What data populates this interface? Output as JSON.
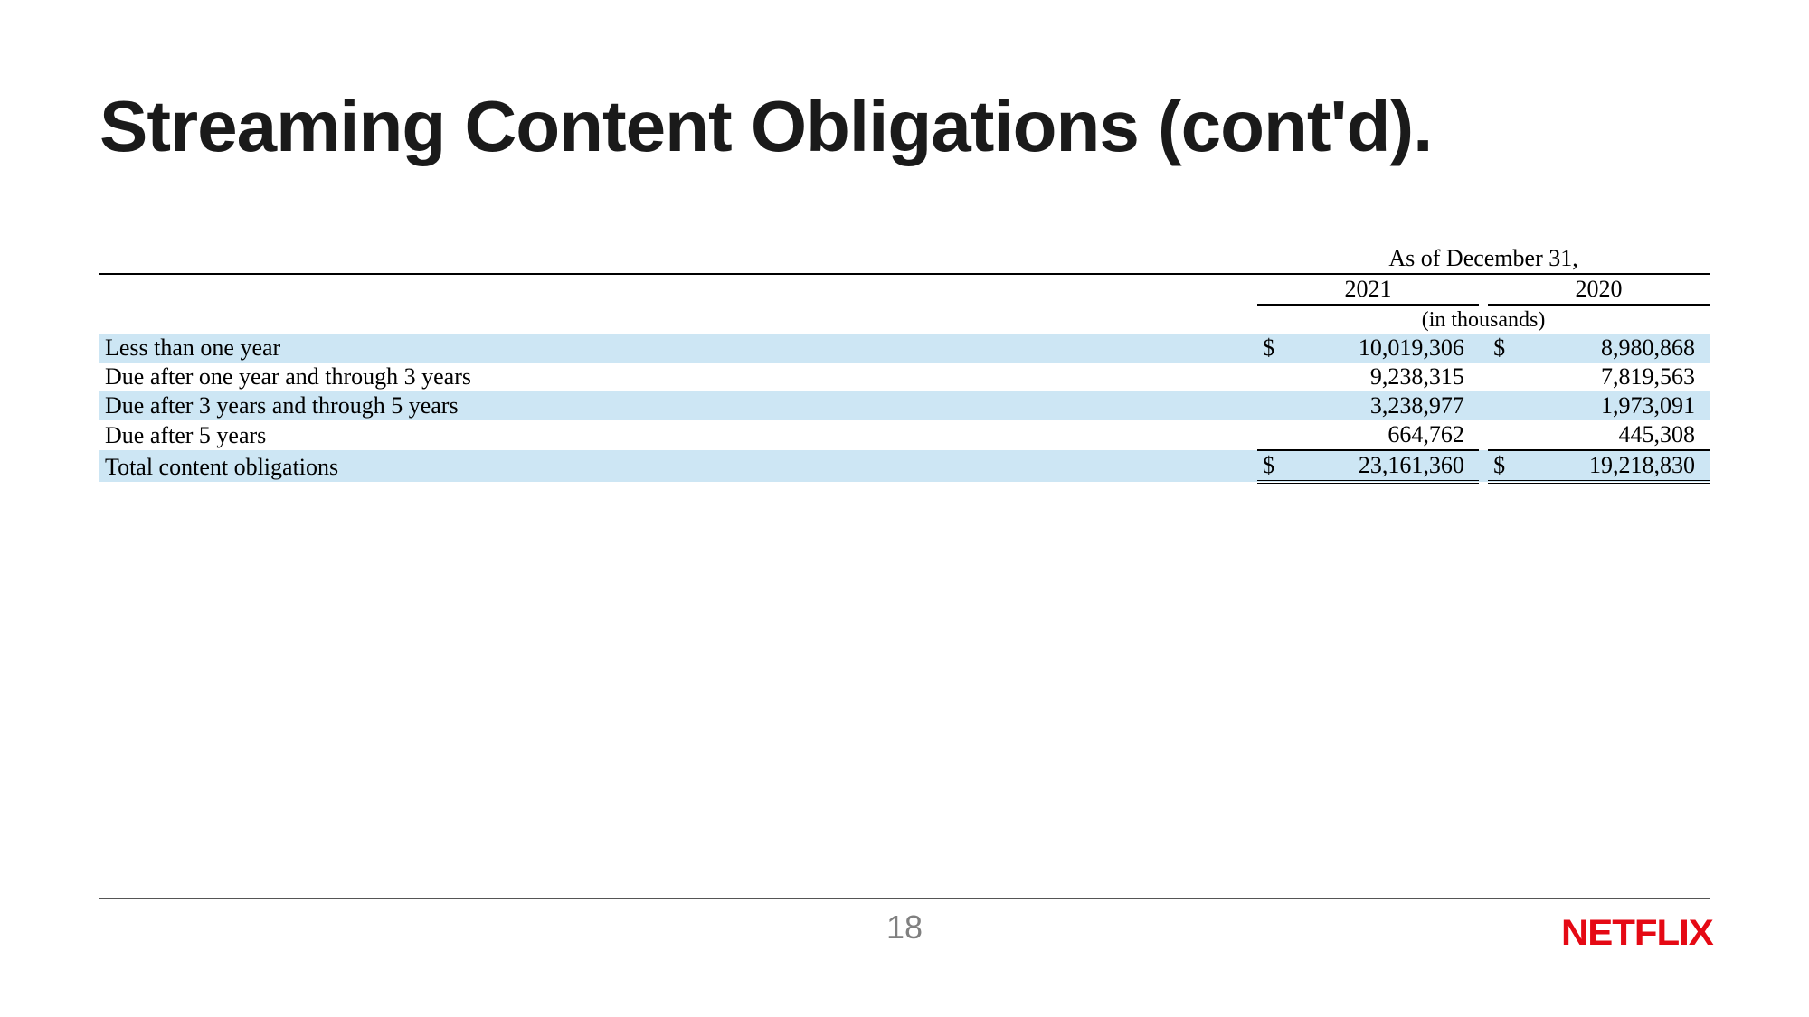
{
  "title": "Streaming Content Obligations (cont'd).",
  "table": {
    "super_header": "As of December 31,",
    "years": [
      "2021",
      "2020"
    ],
    "unit_label": "(in thousands)",
    "currency_symbol": "$",
    "row_highlight_color": "#cde6f4",
    "rows": [
      {
        "label": "Less than one year",
        "v2021": "10,019,306",
        "v2020": "8,980,868",
        "show_currency": true,
        "zebra": true
      },
      {
        "label": "Due after one year and through 3 years",
        "v2021": "9,238,315",
        "v2020": "7,819,563",
        "show_currency": false,
        "zebra": false
      },
      {
        "label": "Due after 3 years and through 5 years",
        "v2021": "3,238,977",
        "v2020": "1,973,091",
        "show_currency": false,
        "zebra": true
      },
      {
        "label": "Due after 5 years",
        "v2021": "664,762",
        "v2020": "445,308",
        "show_currency": false,
        "zebra": false
      }
    ],
    "total": {
      "label": "Total content obligations",
      "v2021": "23,161,360",
      "v2020": "19,218,830"
    }
  },
  "footer": {
    "page_number": "18",
    "logo_text": "NETFLIX",
    "logo_color": "#e50914"
  }
}
